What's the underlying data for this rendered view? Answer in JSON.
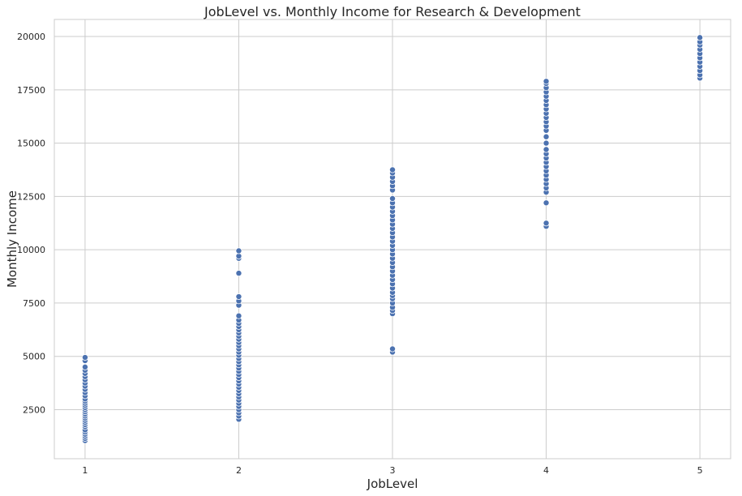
{
  "chart_data": {
    "type": "scatter",
    "title": "JobLevel vs. Monthly Income for Research & Development",
    "xlabel": "JobLevel",
    "ylabel": "Monthly Income",
    "xlim": [
      0.8,
      5.2
    ],
    "ylim": [
      200,
      20800
    ],
    "x_ticks": [
      1,
      2,
      3,
      4,
      5
    ],
    "y_ticks": [
      2500,
      5000,
      7500,
      10000,
      12500,
      15000,
      17500,
      20000
    ],
    "grid": true,
    "color": "#4c72b0",
    "series": [
      {
        "x": 1,
        "y": [
          1050,
          1150,
          1250,
          1350,
          1450,
          1550,
          1700,
          1800,
          1900,
          2000,
          2100,
          2200,
          2300,
          2400,
          2500,
          2600,
          2700,
          2800,
          2900,
          3000,
          3150,
          3300,
          3450,
          3600,
          3750,
          3900,
          4050,
          4200,
          4350,
          4500,
          4800,
          4950
        ]
      },
      {
        "x": 2,
        "y": [
          2050,
          2200,
          2350,
          2500,
          2650,
          2800,
          2950,
          3100,
          3250,
          3400,
          3550,
          3700,
          3850,
          4000,
          4150,
          4300,
          4450,
          4600,
          4750,
          4900,
          5050,
          5200,
          5350,
          5500,
          5650,
          5800,
          5950,
          6100,
          6250,
          6400,
          6550,
          6700,
          6900,
          7400,
          7600,
          7800,
          8900,
          9600,
          9700,
          9950
        ]
      },
      {
        "x": 3,
        "y": [
          5200,
          5350,
          7000,
          7150,
          7300,
          7500,
          7700,
          7850,
          8000,
          8200,
          8400,
          8600,
          8800,
          9000,
          9200,
          9400,
          9600,
          9800,
          10000,
          10200,
          10400,
          10600,
          10800,
          11000,
          11200,
          11400,
          11600,
          11800,
          12000,
          12200,
          12400,
          12800,
          13000,
          13200,
          13400,
          13600,
          13750
        ]
      },
      {
        "x": 4,
        "y": [
          11100,
          11250,
          12200,
          12700,
          12900,
          13100,
          13300,
          13500,
          13700,
          13900,
          14100,
          14300,
          14500,
          14700,
          15000,
          15300,
          15600,
          15800,
          16000,
          16200,
          16400,
          16600,
          16800,
          17000,
          17200,
          17400,
          17600,
          17800,
          17900
        ]
      },
      {
        "x": 5,
        "y": [
          18050,
          18200,
          18400,
          18600,
          18800,
          19000,
          19200,
          19400,
          19600,
          19750,
          19950
        ]
      }
    ]
  }
}
